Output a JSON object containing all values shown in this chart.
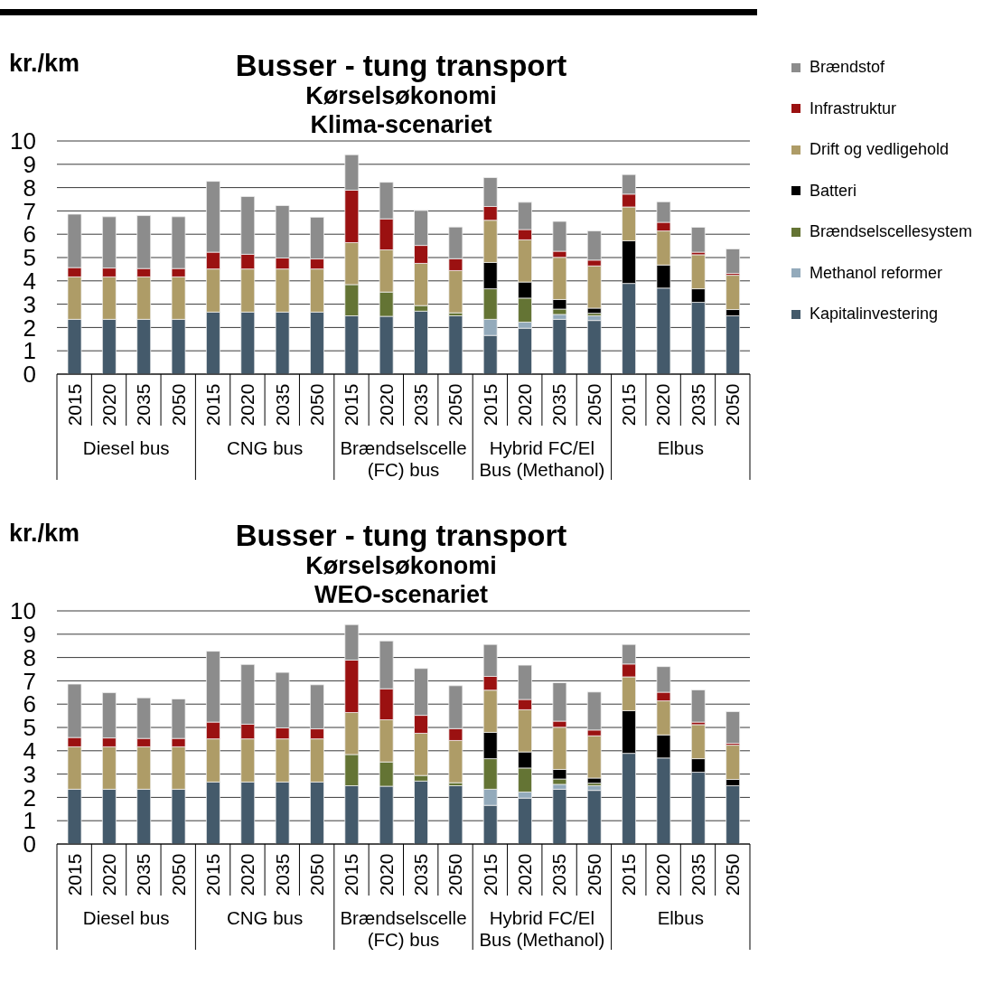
{
  "chart_data": [
    {
      "type": "bar",
      "title": "Busser - tung transport",
      "subtitle": "Kørselsøkonomi\nKlima-scenariet",
      "ylabel": "kr./km",
      "categories": [
        "2015",
        "2020",
        "2035",
        "2050",
        "2015",
        "2020",
        "2035",
        "2050",
        "2015",
        "2020",
        "2035",
        "2050",
        "2015",
        "2020",
        "2035",
        "2050",
        "2015",
        "2020",
        "2035",
        "2050"
      ],
      "annotations": [
        "Diesel bus",
        "CNG bus",
        "Brændselscelle (FC) bus",
        "Hybrid FC/El Bus (Methanol)",
        "Elbus"
      ],
      "stacked": true,
      "ylim": [
        0,
        10
      ],
      "yticks": [
        0,
        1,
        2,
        3,
        4,
        5,
        6,
        7,
        8,
        9,
        10
      ],
      "grid": "y",
      "legend": "right",
      "series": [
        {
          "name": "Kapitalinvestering",
          "color": "#445a6b",
          "values": [
            2.35,
            2.35,
            2.35,
            2.35,
            2.66,
            2.66,
            2.66,
            2.66,
            2.5,
            2.48,
            2.7,
            2.5,
            1.66,
            1.97,
            2.35,
            2.3,
            3.89,
            3.69,
            3.08,
            2.5
          ]
        },
        {
          "name": "Methanol reformer",
          "color": "#93aabb",
          "values": [
            null,
            null,
            null,
            null,
            null,
            null,
            null,
            null,
            null,
            null,
            null,
            null,
            0.69,
            0.26,
            0.21,
            0.2,
            null,
            null,
            null,
            null
          ]
        },
        {
          "name": "Brændselscellesystem",
          "color": "#647434",
          "values": [
            null,
            null,
            null,
            null,
            null,
            null,
            null,
            null,
            1.34,
            1.04,
            0.24,
            0.13,
            1.31,
            1.03,
            0.23,
            0.11,
            null,
            null,
            null,
            null
          ]
        },
        {
          "name": "Batteri",
          "color": "#000000",
          "values": [
            null,
            null,
            null,
            null,
            null,
            null,
            null,
            null,
            null,
            null,
            null,
            null,
            1.13,
            0.69,
            0.41,
            0.22,
            1.83,
            0.99,
            0.58,
            0.27
          ]
        },
        {
          "name": "Drift og vedligehold",
          "color": "#ae9c67",
          "values": [
            1.82,
            1.82,
            1.82,
            1.82,
            1.85,
            1.85,
            1.85,
            1.85,
            1.8,
            1.81,
            1.81,
            1.81,
            1.81,
            1.81,
            1.81,
            1.81,
            1.45,
            1.46,
            1.46,
            1.47
          ]
        },
        {
          "name": "Infrastruktur",
          "color": "#9b1111",
          "values": [
            0.4,
            0.38,
            0.36,
            0.36,
            0.72,
            0.63,
            0.47,
            0.43,
            2.25,
            1.33,
            0.77,
            0.51,
            0.59,
            0.44,
            0.26,
            0.25,
            0.55,
            0.37,
            0.11,
            0.08
          ]
        },
        {
          "name": "Brændstof",
          "color": "#8c8c8c",
          "values": [
            2.29,
            2.2,
            2.27,
            2.22,
            3.04,
            2.48,
            2.25,
            1.79,
            1.52,
            1.57,
            1.5,
            1.36,
            1.24,
            1.17,
            1.28,
            1.25,
            0.84,
            0.88,
            1.07,
            1.05
          ]
        }
      ]
    },
    {
      "type": "bar",
      "title": "Busser - tung transport",
      "subtitle": "Kørselsøkonomi\nWEO-scenariet",
      "ylabel": "kr./km",
      "categories": [
        "2015",
        "2020",
        "2035",
        "2050",
        "2015",
        "2020",
        "2035",
        "2050",
        "2015",
        "2020",
        "2035",
        "2050",
        "2015",
        "2020",
        "2035",
        "2050",
        "2015",
        "2020",
        "2035",
        "2050"
      ],
      "annotations": [
        "Diesel bus",
        "CNG bus",
        "Brændselscelle (FC) bus",
        "Hybrid FC/El Bus (Methanol)",
        "Elbus"
      ],
      "stacked": true,
      "ylim": [
        0,
        10
      ],
      "yticks": [
        0,
        1,
        2,
        3,
        4,
        5,
        6,
        7,
        8,
        9,
        10
      ],
      "grid": "y",
      "series": [
        {
          "name": "Kapitalinvestering",
          "color": "#445a6b",
          "values": [
            2.35,
            2.35,
            2.35,
            2.35,
            2.66,
            2.66,
            2.66,
            2.66,
            2.5,
            2.48,
            2.7,
            2.5,
            1.66,
            1.97,
            2.35,
            2.3,
            3.89,
            3.69,
            3.08,
            2.5
          ]
        },
        {
          "name": "Methanol reformer",
          "color": "#93aabb",
          "values": [
            null,
            null,
            null,
            null,
            null,
            null,
            null,
            null,
            null,
            null,
            null,
            null,
            0.69,
            0.26,
            0.21,
            0.2,
            null,
            null,
            null,
            null
          ]
        },
        {
          "name": "Brændselscellesystem",
          "color": "#647434",
          "values": [
            null,
            null,
            null,
            null,
            null,
            null,
            null,
            null,
            1.34,
            1.04,
            0.24,
            0.13,
            1.31,
            1.03,
            0.23,
            0.11,
            null,
            null,
            null,
            null
          ]
        },
        {
          "name": "Batteri",
          "color": "#000000",
          "values": [
            null,
            null,
            null,
            null,
            null,
            null,
            null,
            null,
            null,
            null,
            null,
            null,
            1.13,
            0.69,
            0.41,
            0.22,
            1.83,
            0.99,
            0.58,
            0.27
          ]
        },
        {
          "name": "Drift og vedligehold",
          "color": "#ae9c67",
          "values": [
            1.82,
            1.82,
            1.82,
            1.82,
            1.85,
            1.85,
            1.85,
            1.85,
            1.8,
            1.81,
            1.81,
            1.81,
            1.81,
            1.81,
            1.81,
            1.81,
            1.45,
            1.46,
            1.46,
            1.47
          ]
        },
        {
          "name": "Infrastruktur",
          "color": "#9b1111",
          "values": [
            0.4,
            0.38,
            0.36,
            0.36,
            0.72,
            0.63,
            0.47,
            0.43,
            2.25,
            1.33,
            0.77,
            0.51,
            0.59,
            0.44,
            0.26,
            0.25,
            0.55,
            0.37,
            0.11,
            0.08
          ]
        },
        {
          "name": "Brændstof",
          "color": "#8c8c8c",
          "values": [
            2.29,
            1.94,
            1.74,
            1.69,
            3.04,
            2.56,
            2.38,
            1.89,
            1.52,
            2.05,
            2.01,
            1.84,
            1.37,
            1.47,
            1.65,
            1.63,
            0.84,
            1.1,
            1.38,
            1.36
          ]
        }
      ]
    }
  ]
}
